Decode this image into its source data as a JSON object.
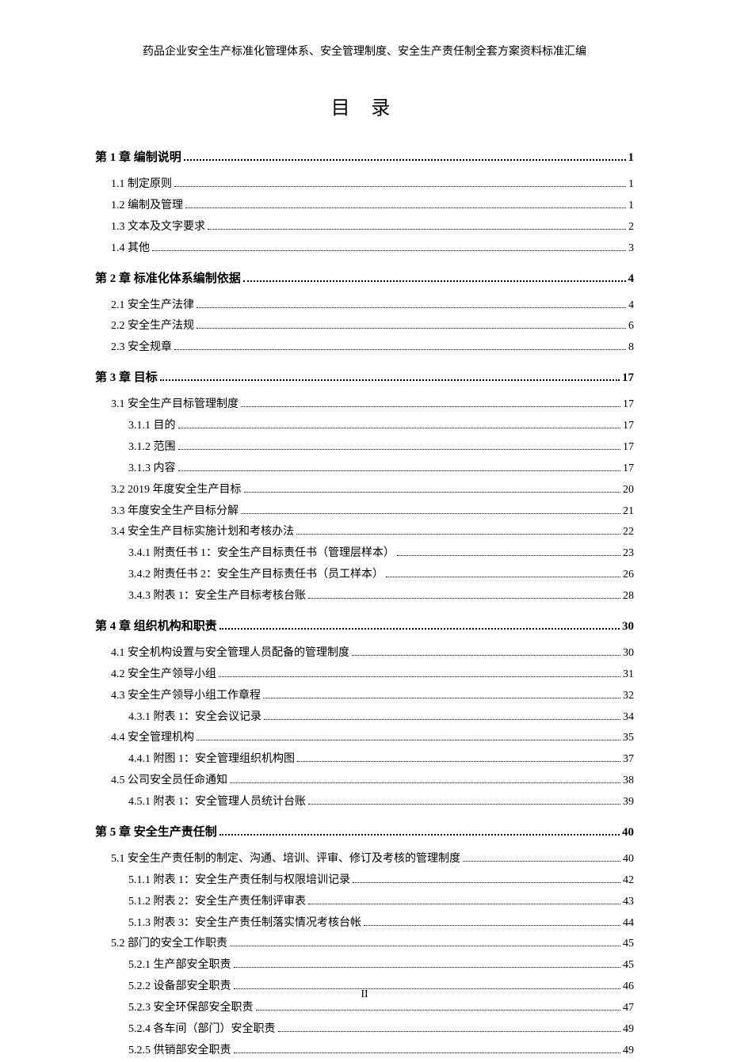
{
  "running_header": "药品企业安全生产标准化管理体系、安全管理制度、安全生产责任制全套方案资料标准汇编",
  "title": "目 录",
  "page_number": "II",
  "toc": [
    {
      "level": "chapter",
      "label": "第 1 章  编制说明",
      "page": "1"
    },
    {
      "level": "l1",
      "label": "1.1  制定原则",
      "page": "1"
    },
    {
      "level": "l1",
      "label": "1.2  编制及管理",
      "page": "1"
    },
    {
      "level": "l1",
      "label": "1.3  文本及文字要求",
      "page": "2"
    },
    {
      "level": "l1",
      "label": "1.4  其他",
      "page": "3"
    },
    {
      "level": "chapter",
      "label": "第 2 章  标准化体系编制依据",
      "page": "4"
    },
    {
      "level": "l1",
      "label": "2.1  安全生产法律",
      "page": "4"
    },
    {
      "level": "l1",
      "label": "2.2  安全生产法规",
      "page": "6"
    },
    {
      "level": "l1",
      "label": "2.3  安全规章",
      "page": "8"
    },
    {
      "level": "chapter",
      "label": "第 3 章  目标",
      "page": "17"
    },
    {
      "level": "l1",
      "label": "3.1  安全生产目标管理制度",
      "page": "17"
    },
    {
      "level": "l2",
      "label": "3.1.1  目的",
      "page": "17"
    },
    {
      "level": "l2",
      "label": "3.1.2  范围",
      "page": "17"
    },
    {
      "level": "l2",
      "label": "3.1.3  内容",
      "page": "17"
    },
    {
      "level": "l1",
      "label": "3.2 2019 年度安全生产目标",
      "page": "20"
    },
    {
      "level": "l1",
      "label": "3.3  年度安全生产目标分解",
      "page": "21"
    },
    {
      "level": "l1",
      "label": "3.4  安全生产目标实施计划和考核办法",
      "page": "22"
    },
    {
      "level": "l2",
      "label": "3.4.1  附责任书 1：安全生产目标责任书（管理层样本）",
      "page": "23"
    },
    {
      "level": "l2",
      "label": "3.4.2  附责任书 2：安全生产目标责任书（员工样本）",
      "page": "26"
    },
    {
      "level": "l2",
      "label": "3.4.3  附表 1：安全生产目标考核台账",
      "page": "28"
    },
    {
      "level": "chapter",
      "label": "第 4 章  组织机构和职责",
      "page": "30"
    },
    {
      "level": "l1",
      "label": "4.1  安全机构设置与安全管理人员配备的管理制度",
      "page": "30"
    },
    {
      "level": "l1",
      "label": "4.2  安全生产领导小组",
      "page": "31"
    },
    {
      "level": "l1",
      "label": "4.3  安全生产领导小组工作章程",
      "page": "32"
    },
    {
      "level": "l2",
      "label": "4.3.1  附表 1：安全会议记录",
      "page": "34"
    },
    {
      "level": "l1",
      "label": "4.4  安全管理机构",
      "page": "35"
    },
    {
      "level": "l2",
      "label": "4.4.1  附图 1：安全管理组织机构图",
      "page": "37"
    },
    {
      "level": "l1",
      "label": "4.5  公司安全员任命通知",
      "page": "38"
    },
    {
      "level": "l2",
      "label": "4.5.1  附表 1：安全管理人员统计台账",
      "page": "39"
    },
    {
      "level": "chapter",
      "label": "第 5 章  安全生产责任制",
      "page": "40"
    },
    {
      "level": "l1",
      "label": "5.1  安全生产责任制的制定、沟通、培训、评审、修订及考核的管理制度",
      "page": "40"
    },
    {
      "level": "l2",
      "label": "5.1.1  附表 1：安全生产责任制与权限培训记录",
      "page": "42"
    },
    {
      "level": "l2",
      "label": "5.1.2  附表 2：安全生产责任制评审表",
      "page": "43"
    },
    {
      "level": "l2",
      "label": "5.1.3  附表 3：安全生产责任制落实情况考核台帐",
      "page": "44"
    },
    {
      "level": "l1",
      "label": "5.2  部门的安全工作职责",
      "page": "45"
    },
    {
      "level": "l2",
      "label": "5.2.1  生产部安全职责",
      "page": "45"
    },
    {
      "level": "l2",
      "label": "5.2.2  设备部安全职责",
      "page": "46"
    },
    {
      "level": "l2",
      "label": "5.2.3  安全环保部安全职责",
      "page": "47"
    },
    {
      "level": "l2",
      "label": "5.2.4  各车间（部门）安全职责",
      "page": "49"
    },
    {
      "level": "l2",
      "label": "5.2.5  供销部安全职责",
      "page": "49"
    }
  ]
}
